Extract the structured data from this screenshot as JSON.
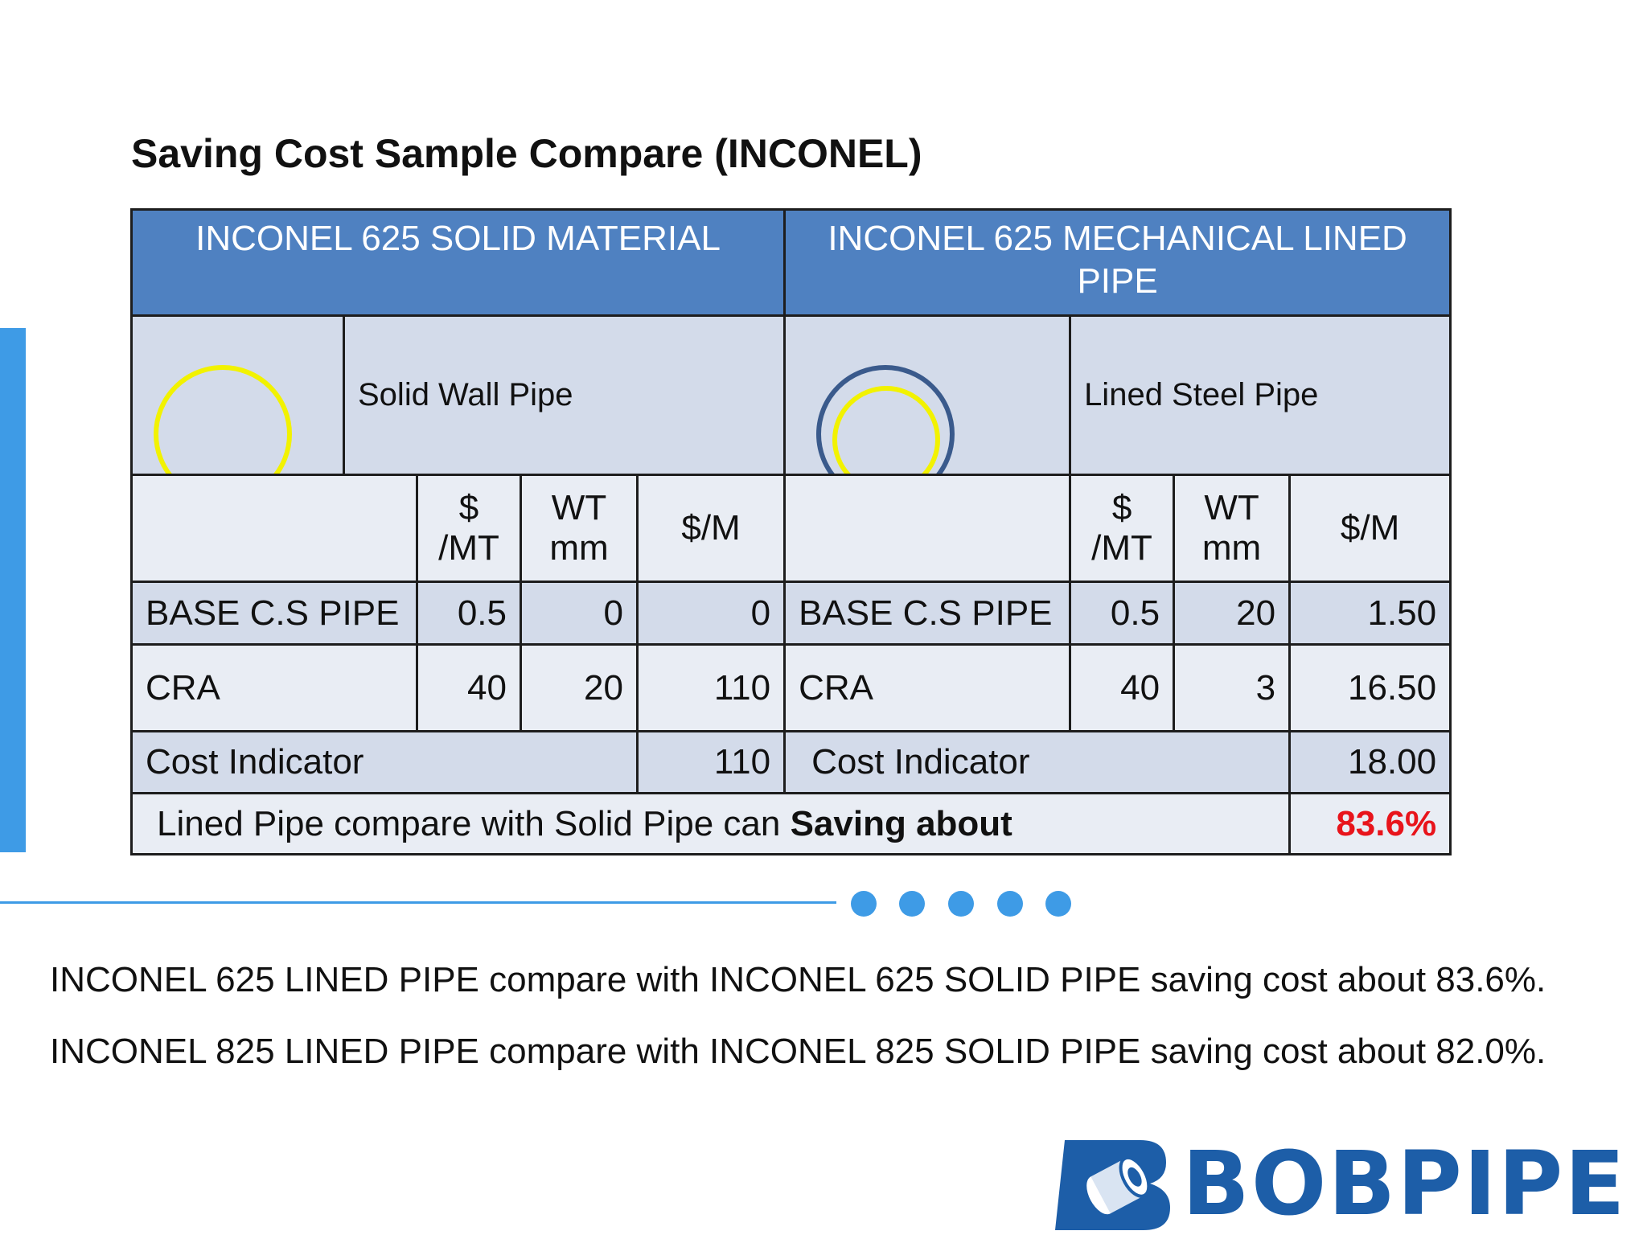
{
  "title": "Saving Cost Sample Compare (INCONEL)",
  "table": {
    "left": {
      "header": "INCONEL 625 SOLID MATERIAL",
      "image_label": "Solid Wall Pipe",
      "col_price": "$ /MT",
      "col_wt": "WT mm",
      "col_per_m": "$/M",
      "rows": [
        {
          "name": "BASE C.S PIPE",
          "price": "0.5",
          "wt": "0",
          "per_m": "0"
        },
        {
          "name": "CRA",
          "price": "40",
          "wt": "20",
          "per_m": "110"
        }
      ],
      "cost_label": "Cost Indicator",
      "cost_value": "110"
    },
    "right": {
      "header": "INCONEL 625 MECHANICAL LINED PIPE",
      "image_label": "Lined Steel Pipe",
      "col_price": "$ /MT",
      "col_wt": "WT mm",
      "col_per_m": "$/M",
      "rows": [
        {
          "name": "BASE C.S PIPE",
          "price": "0.5",
          "wt": "20",
          "per_m": "1.50"
        },
        {
          "name": "CRA",
          "price": "40",
          "wt": "3",
          "per_m": "16.50"
        }
      ],
      "cost_label": "Cost Indicator",
      "cost_value": "18.00"
    },
    "saving_text": "Lined Pipe compare with Solid Pipe can ",
    "saving_bold": "Saving about",
    "saving_value": "83.6%"
  },
  "summary": [
    "INCONEL 625 LINED PIPE compare with INCONEL 625 SOLID PIPE saving cost about 83.6%.",
    "INCONEL 825 LINED PIPE compare with INCONEL 825 SOLID PIPE saving cost about 82.0%."
  ],
  "logo": {
    "text": "BOBPIPE",
    "icon": "pipe-logo-icon"
  },
  "colors": {
    "header_blue": "#4f81c1",
    "row_dark": "#d3dbea",
    "row_light": "#e9edf4",
    "accent_blue": "#3e9be6",
    "saving_red": "#e8141b",
    "circle_yellow": "#f2f200",
    "logo_blue": "#1d5ea8"
  }
}
